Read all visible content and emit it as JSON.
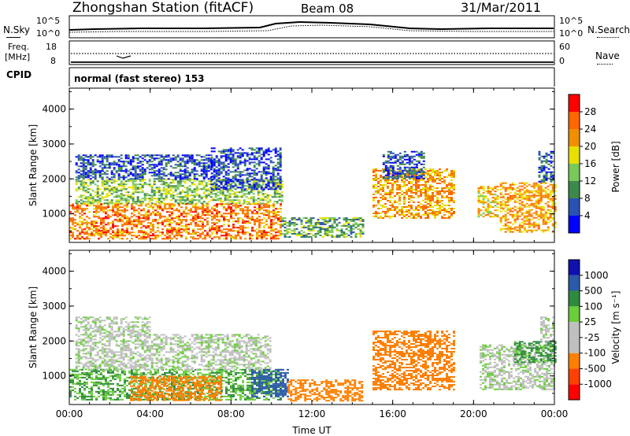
{
  "header": {
    "station_title": "Zhongshan Station (fitACF)",
    "beam": "Beam 08",
    "date": "31/Mar/2011"
  },
  "noise_panel": {
    "left_label": "N.Sky",
    "left_ticks": [
      "10^5",
      "10^0"
    ],
    "right_label": "N.Search",
    "right_ticks": [
      "10^5",
      "10^0"
    ]
  },
  "freq_panel": {
    "left_label_line1": "Freq.",
    "left_label_line2": "[MHz]",
    "left_ticks": [
      "18",
      "8"
    ],
    "right_label": "Nave",
    "right_ticks": [
      "60",
      "0"
    ]
  },
  "cpid": {
    "label": "CPID",
    "program": "normal (fast stereo) 153"
  },
  "colors": {
    "power_scale": [
      "#0000ff",
      "#2a52b4",
      "#3c8a4a",
      "#78c85a",
      "#e8e000",
      "#f09000",
      "#ff6600",
      "#ff0000"
    ],
    "velocity_scale": [
      "#1010b0",
      "#2a5aa8",
      "#2e8a3c",
      "#6acd3a",
      "#bfbfbf",
      "#bfbfbf",
      "#ff8000",
      "#ff4000",
      "#ff0000"
    ]
  },
  "chart_data": [
    {
      "type": "heatmap",
      "name": "power",
      "xlabel": "",
      "ylabel": "Slant Range [km]",
      "x_ticks": [
        "00:00",
        "04:00",
        "08:00",
        "12:00",
        "16:00",
        "20:00",
        "00:00"
      ],
      "y_ticks": [
        "1000",
        "2000",
        "3000",
        "4000"
      ],
      "xlim_hours": [
        0,
        24
      ],
      "ylim_km": [
        180,
        4600
      ],
      "colorbar_label": "Power [dB]",
      "colorbar_ticks": [
        "4",
        "8",
        "12",
        "16",
        "20",
        "24",
        "28"
      ],
      "colorbar_range": [
        0,
        32
      ],
      "regions": [
        {
          "t0": 0.0,
          "t1": 10.5,
          "r0": 300,
          "r1": 1300,
          "level": 24
        },
        {
          "t0": 0.3,
          "t1": 10.5,
          "r0": 1300,
          "r1": 2000,
          "level": 14
        },
        {
          "t0": 0.3,
          "t1": 7.0,
          "r0": 2000,
          "r1": 2700,
          "level": 6
        },
        {
          "t0": 7.0,
          "t1": 10.5,
          "r0": 1700,
          "r1": 2900,
          "level": 5
        },
        {
          "t0": 10.5,
          "t1": 14.5,
          "r0": 350,
          "r1": 900,
          "level": 12
        },
        {
          "t0": 15.0,
          "t1": 19.0,
          "r0": 900,
          "r1": 2300,
          "level": 22
        },
        {
          "t0": 15.5,
          "t1": 17.5,
          "r0": 2000,
          "r1": 2800,
          "level": 6
        },
        {
          "t0": 20.2,
          "t1": 21.2,
          "r0": 900,
          "r1": 1800,
          "level": 20
        },
        {
          "t0": 21.3,
          "t1": 24.0,
          "r0": 500,
          "r1": 1900,
          "level": 22
        },
        {
          "t0": 23.2,
          "t1": 24.0,
          "r0": 1900,
          "r1": 2800,
          "level": 6
        }
      ]
    },
    {
      "type": "heatmap",
      "name": "velocity",
      "xlabel": "Time UT",
      "ylabel": "Slant Range [km]",
      "x_ticks": [
        "00:00",
        "04:00",
        "08:00",
        "12:00",
        "16:00",
        "20:00",
        "00:00"
      ],
      "y_ticks": [
        "1000",
        "2000",
        "3000",
        "4000"
      ],
      "xlim_hours": [
        0,
        24
      ],
      "ylim_km": [
        180,
        4600
      ],
      "colorbar_label": "Velocity [m s⁻¹]",
      "colorbar_ticks": [
        "1000",
        "500",
        "100",
        "25",
        "-25",
        "-100",
        "-500",
        "-1000"
      ],
      "regions": [
        {
          "t0": 0.0,
          "t1": 10.5,
          "r0": 300,
          "r1": 1200,
          "level": 100
        },
        {
          "t0": 3.0,
          "t1": 7.5,
          "r0": 300,
          "r1": 1000,
          "level": -300
        },
        {
          "t0": 0.3,
          "t1": 10.0,
          "r0": 1200,
          "r1": 2200,
          "level": 0
        },
        {
          "t0": 0.3,
          "t1": 4.0,
          "r0": 2200,
          "r1": 2700,
          "level": 0
        },
        {
          "t0": 9.0,
          "t1": 10.8,
          "r0": 400,
          "r1": 1200,
          "level": 800
        },
        {
          "t0": 10.8,
          "t1": 14.5,
          "r0": 300,
          "r1": 900,
          "level": -300
        },
        {
          "t0": 15.0,
          "t1": 19.0,
          "r0": 600,
          "r1": 2300,
          "level": -300
        },
        {
          "t0": 20.3,
          "t1": 24.0,
          "r0": 600,
          "r1": 1900,
          "level": 0
        },
        {
          "t0": 22.0,
          "t1": 24.0,
          "r0": 1400,
          "r1": 2000,
          "level": 200
        },
        {
          "t0": 23.3,
          "t1": 24.0,
          "r0": 1900,
          "r1": 2700,
          "level": 0
        }
      ]
    }
  ]
}
